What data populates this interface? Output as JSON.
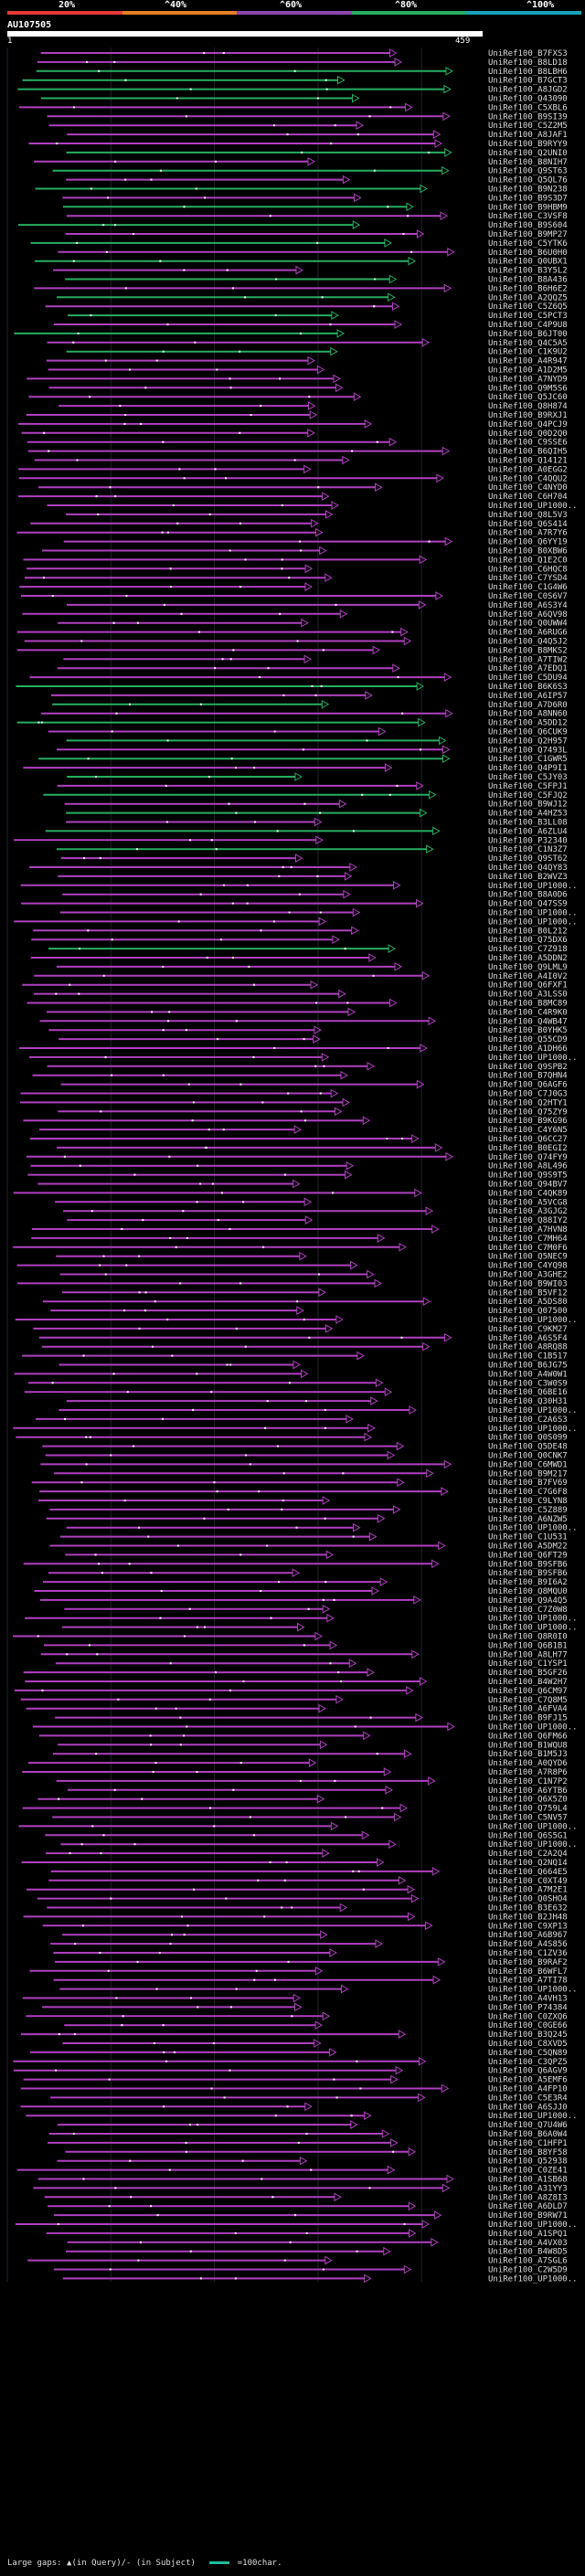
{
  "legend": {
    "labels": [
      "20%",
      "^40%",
      "^60%",
      "^80%",
      "^100%"
    ],
    "colors": [
      "#e53935",
      "#e67e22",
      "#8e44ad",
      "#27ae60",
      "#17a2b8"
    ]
  },
  "query": {
    "title": "AU107505",
    "start": "1",
    "end": "459",
    "length": 459
  },
  "hits": [
    "UniRef100_B7FXS3",
    "UniRef100_B8LD18",
    "UniRef100_B8LBH6",
    "UniRef100_B7GCT3",
    "UniRef100_A8JGD2",
    "UniRef100_Q43090",
    "UniRef100_C5XBL6",
    "UniRef100_B9SI39",
    "UniRef100_C5Z2M5",
    "UniRef100_A8JAF1",
    "UniRef100_B9RYY9",
    "UniRef100_Q2UNI0",
    "UniRef100_B8NIH7",
    "UniRef100_Q9ST63",
    "UniRef100_Q5QL76",
    "UniRef100_B9N238",
    "UniRef100_B9S3D7",
    "UniRef100_B9HBM9",
    "UniRef100_C3VSF8",
    "UniRef100_B9S604",
    "UniRef100_B9MP27",
    "UniRef100_C5YTK6",
    "UniRef100_B6U0H0",
    "UniRef100_Q0UBX1",
    "UniRef100_B3Y5L2",
    "UniRef100_B8A436",
    "UniRef100_B6H6E2",
    "UniRef100_A2QQZ5",
    "UniRef100_C5Z6Q5",
    "UniRef100_C5PCT3",
    "UniRef100_C4P9U8",
    "UniRef100_B6JT00",
    "UniRef100_Q4C5A5",
    "UniRef100_C1K9U2",
    "UniRef100_A4R947",
    "UniRef100_A1D2M5",
    "UniRef100_A7NYD9",
    "UniRef100_Q9M5S6",
    "UniRef100_Q5JC60",
    "UniRef100_Q8H874",
    "UniRef100_B9RXJ1",
    "UniRef100_Q4PCJ9",
    "UniRef100_Q0D2Q0",
    "UniRef100_C9SSE6",
    "UniRef100_B6QIH5",
    "UniRef100_Q14121",
    "UniRef100_A0EGG2",
    "UniRef100_C4QQU2",
    "UniRef100_C4NYD0",
    "UniRef100_C6H704",
    "UniRef100_UP1000..",
    "UniRef100_Q8L5V3",
    "UniRef100_Q6S414",
    "UniRef100_A7R7Y6",
    "UniRef100_Q6YY19",
    "UniRef100_B0XBW6",
    "UniRef100_Q1E2C0",
    "UniRef100_C6HQC8",
    "UniRef100_C7YSD4",
    "UniRef100_C1G4W6",
    "UniRef100_C0S6V7",
    "UniRef100_A6S3Y4",
    "UniRef100_A6QV98",
    "UniRef100_Q0UWW4",
    "UniRef100_A6RUG6",
    "UniRef100_Q4Q5J2",
    "UniRef100_B8MKS2",
    "UniRef100_A7TIW2",
    "UniRef100_A7EDQ1",
    "UniRef100_C5DU94",
    "UniRef100_B6K6S3",
    "UniRef100_A6IP57",
    "UniRef100_A7D6R0",
    "UniRef100_A8NN60",
    "UniRef100_A5DD12",
    "UniRef100_Q6CUK9",
    "UniRef100_Q2H957",
    "UniRef100_Q7493L",
    "UniRef100_C1GWR5",
    "UniRef100_Q4P9I1",
    "UniRef100_C5JY03",
    "UniRef100_C5FPJ1",
    "UniRef100_C5FJQ2",
    "UniRef100_B9WJ12",
    "UniRef100_A4HZ53",
    "UniRef100_B3LL08",
    "UniRef100_A6ZLU4",
    "UniRef100_P32340",
    "UniRef100_C1N3Z7",
    "UniRef100_Q9ST62",
    "UniRef100_Q4QY83",
    "UniRef100_B2WVZ3",
    "UniRef100_UP1000..",
    "UniRef100_B8A0D6",
    "UniRef100_Q47SS9",
    "UniRef100_UP1000..",
    "UniRef100_UP1000..",
    "UniRef100_B0L212",
    "UniRef100_Q75DX6",
    "UniRef100_C7Z918",
    "UniRef100_A5DDN2",
    "UniRef100_Q9LML9",
    "UniRef100_A4I0V2",
    "UniRef100_Q6FXF1",
    "UniRef100_A3LSS0",
    "UniRef100_B8MC89",
    "UniRef100_C4R9K0",
    "UniRef100_Q4WB47",
    "UniRef100_B0YHK5",
    "UniRef100_Q55CD9",
    "UniRef100_A1DH66",
    "UniRef100_UP1000..",
    "UniRef100_Q9SPB2",
    "UniRef100_B7QHN4",
    "UniRef100_Q6AGF6",
    "UniRef100_C7J0G3",
    "UniRef100_Q2HTY1",
    "UniRef100_Q75ZY9",
    "UniRef100_B9KG96",
    "UniRef100_C4Y6N5",
    "UniRef100_Q6CC27",
    "UniRef100_B0EGI2",
    "UniRef100_Q74FY9",
    "UniRef100_A8L496",
    "UniRef100_Q9S9T5",
    "UniRef100_Q94BV7",
    "UniRef100_C4QK89",
    "UniRef100_A5VCG8",
    "UniRef100_A3GJG2",
    "UniRef100_Q88IY2",
    "UniRef100_A7HVN8",
    "UniRef100_C7MH64",
    "UniRef100_C7M0F6",
    "UniRef100_Q5NEC9",
    "UniRef100_C4YQ98",
    "UniRef100_A3GHE2",
    "UniRef100_B9WI03",
    "UniRef100_B5VF12",
    "UniRef100_A5DS80",
    "UniRef100_Q07500",
    "UniRef100_UP1000..",
    "UniRef100_C9KM27",
    "UniRef100_A6S5F4",
    "UniRef100_A8RQ88",
    "UniRef100_C1B517",
    "UniRef100_B6JG75",
    "UniRef100_A4W0W1",
    "UniRef100_C3W0S9",
    "UniRef100_Q6BE16",
    "UniRef100_Q30H31",
    "UniRef100_UP1000..",
    "UniRef100_C2A6S3",
    "UniRef100_UP1000..",
    "UniRef100_Q0S099",
    "UniRef100_Q5DE48",
    "UniRef100_Q0CNK7",
    "UniRef100_C6MWD1",
    "UniRef100_B9M217",
    "UniRef100_B7FV69",
    "UniRef100_C7G6F8",
    "UniRef100_C9LYN8",
    "UniRef100_C5Z889",
    "UniRef100_A6NZW5",
    "UniRef100_UP1000..",
    "UniRef100_C1U531",
    "UniRef100_A5DM22",
    "UniRef100_Q6FT29",
    "UniRef100_B9SFB6",
    "UniRef100_B9SFB6",
    "UniRef100_B9I6A2",
    "UniRef100_Q8MQU0",
    "UniRef100_Q9A4Q5",
    "UniRef100_C7Z0W8",
    "UniRef100_UP1000..",
    "UniRef100_UP1000..",
    "UniRef100_Q8R0I0",
    "UniRef100_Q6B1B1",
    "UniRef100_A8LH77",
    "UniRef100_C1YSP1",
    "UniRef100_B5GF26",
    "UniRef100_B4W2H7",
    "UniRef100_Q6CM97",
    "UniRef100_C7Q8M5",
    "UniRef100_A6FVA4",
    "UniRef100_B9FJ15",
    "UniRef100_UP1000..",
    "UniRef100_Q6FM66",
    "UniRef100_B1WQU8",
    "UniRef100_B1M5J3",
    "UniRef100_A0QYD6",
    "UniRef100_A7R8P6",
    "UniRef100_C1N7P2",
    "UniRef100_A6YTB6",
    "UniRef100_Q6X5Z0",
    "UniRef100_Q759L4",
    "UniRef100_C5NV57",
    "UniRef100_UP1000..",
    "UniRef100_Q6S5G1",
    "UniRef100_UP1000..",
    "UniRef100_C2A2Q4",
    "UniRef100_Q2NQ14",
    "UniRef100_Q664E5",
    "UniRef100_C0XT49",
    "UniRef100_A7M2E1",
    "UniRef100_Q0SHO4",
    "UniRef100_B3E632",
    "UniRef100_B2JH48",
    "UniRef100_C9XP13",
    "UniRef100_A6B967",
    "UniRef100_A4S856",
    "UniRef100_C1ZV36",
    "UniRef100_B9RAF2",
    "UniRef100_B6WFL7",
    "UniRef100_A7TI78",
    "UniRef100_UP1000..",
    "UniRef100_A4VH13",
    "UniRef100_P74384",
    "UniRef100_C0ZXQ6",
    "UniRef100_C0GE66",
    "UniRef100_B3Q245",
    "UniRef100_C8XVD5",
    "UniRef100_C5QN89",
    "UniRef100_C3QPZ5",
    "UniRef100_Q6AGV9",
    "UniRef100_A5EMF6",
    "UniRef100_A4FP10",
    "UniRef100_C5E3R4",
    "UniRef100_A6SJJ0",
    "UniRef100_UP1000..",
    "UniRef100_Q7U4W6",
    "UniRef100_B6A0W4",
    "UniRef100_C1HFP1",
    "UniRef100_B8YF58",
    "UniRef100_Q52938",
    "UniRef100_C0ZE41",
    "UniRef100_A1SB68",
    "UniRef100_A31YY3",
    "UniRef100_A8Z8I3",
    "UniRef100_A6DLD7",
    "UniRef100_B9RW71",
    "UniRef100_UP1000..",
    "UniRef100_A1SPQ1",
    "UniRef100_A4VX03",
    "UniRef100_B4W8D5",
    "UniRef100_A7SGL6",
    "UniRef100_C2W5D9",
    "UniRef100_UP1000.."
  ],
  "footer": {
    "gaps_label": "Large gaps: ▲(in Query)/- (in Subject)",
    "scale_label": "=100char."
  }
}
